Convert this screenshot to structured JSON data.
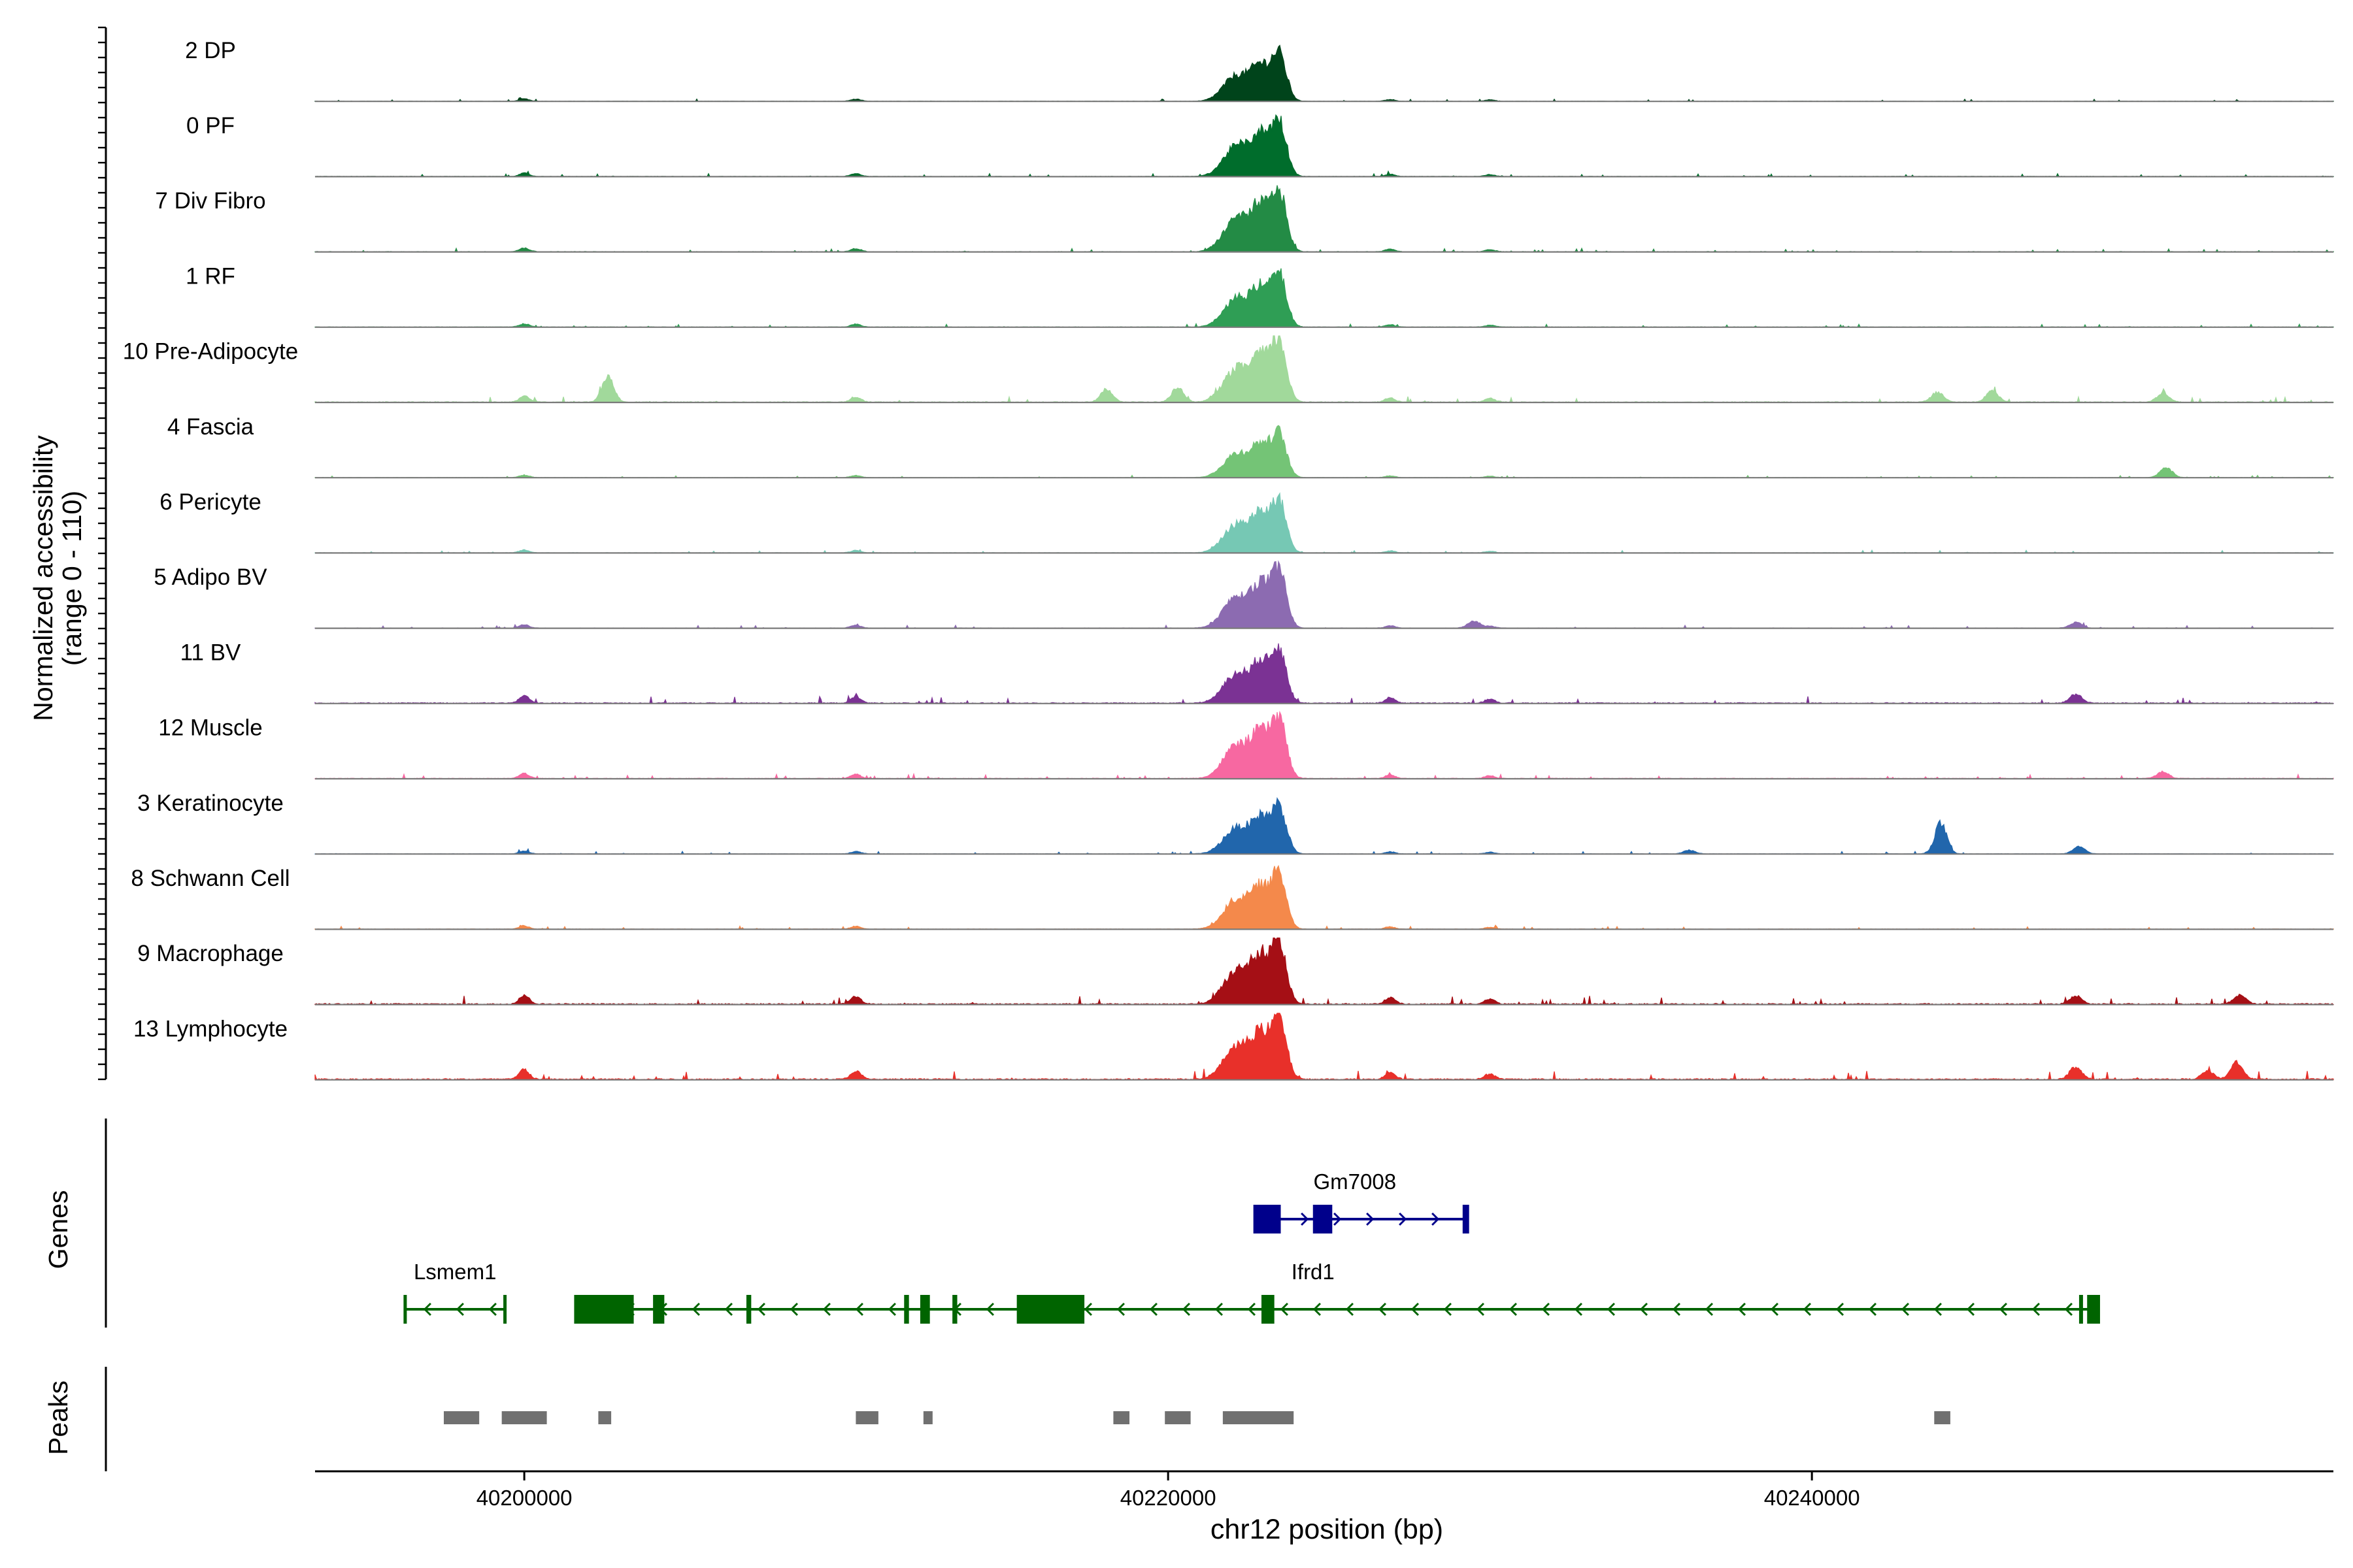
{
  "chart_data": {
    "type": "area",
    "ylabel": "Normalized accessibility",
    "ylabel_range": "(range 0 - 110)",
    "ylim": [
      0,
      110
    ],
    "xlabel": "chr12 position (bp)",
    "xlim": [
      40193500,
      40256200
    ],
    "x_ticks": [
      40200000,
      40220000,
      40240000
    ],
    "x_tick_labels": [
      "40200000",
      "40220000",
      "40240000"
    ],
    "genes_label": "Genes",
    "peaks_label": "Peaks",
    "tracks": [
      {
        "label": "2 DP",
        "color": "#00441b",
        "scale": 0.78,
        "bg": 0.6,
        "extra": []
      },
      {
        "label": "0 PF",
        "color": "#006d2c",
        "scale": 0.92,
        "bg": 0.8,
        "extra": []
      },
      {
        "label": "7 Div Fibro",
        "color": "#238b45",
        "scale": 1.0,
        "bg": 0.9,
        "extra": []
      },
      {
        "label": "1 RF",
        "color": "#2f9e55",
        "scale": 0.86,
        "bg": 0.8,
        "extra": []
      },
      {
        "label": "10 Pre-Adipocyte",
        "color": "#a1d99b",
        "scale": 1.0,
        "bg": 1.5,
        "extra": [
          [
            40202600,
            0.42
          ],
          [
            40218100,
            0.22
          ],
          [
            40220300,
            0.25
          ],
          [
            40243900,
            0.17
          ],
          [
            40245600,
            0.2
          ],
          [
            40250900,
            0.15
          ]
        ]
      },
      {
        "label": "4 Fascia",
        "color": "#74c476",
        "scale": 0.72,
        "bg": 0.6,
        "extra": [
          [
            40251000,
            0.18
          ]
        ]
      },
      {
        "label": "6 Pericyte",
        "color": "#76c8b4",
        "scale": 0.85,
        "bg": 0.7,
        "extra": []
      },
      {
        "label": "5 Adipo BV",
        "color": "#8c6bb1",
        "scale": 0.95,
        "bg": 0.8,
        "extra": [
          [
            40229500,
            0.12
          ],
          [
            40248200,
            0.1
          ]
        ]
      },
      {
        "label": "11 BV",
        "color": "#7b3294",
        "scale": 0.88,
        "bg": 1.8,
        "extra": [
          [
            40248200,
            0.16
          ]
        ]
      },
      {
        "label": "12 Muscle",
        "color": "#f768a1",
        "scale": 1.0,
        "bg": 1.2,
        "extra": [
          [
            40250900,
            0.12
          ]
        ]
      },
      {
        "label": "3 Keratinocyte",
        "color": "#2166ac",
        "scale": 0.78,
        "bg": 0.7,
        "extra": [
          [
            40244000,
            0.52
          ],
          [
            40248300,
            0.12
          ],
          [
            40236200,
            0.06
          ]
        ]
      },
      {
        "label": "8 Schwann Cell",
        "color": "#f4894b",
        "scale": 0.9,
        "bg": 0.8,
        "extra": []
      },
      {
        "label": "9 Macrophage",
        "color": "#a50f15",
        "scale": 1.0,
        "bg": 2.2,
        "extra": [
          [
            40253300,
            0.15
          ],
          [
            40248200,
            0.14
          ]
        ]
      },
      {
        "label": "13 Lymphocyte",
        "color": "#e8302a",
        "scale": 1.0,
        "bg": 2.4,
        "extra": [
          [
            40253200,
            0.3
          ],
          [
            40248200,
            0.22
          ],
          [
            40252300,
            0.14
          ]
        ]
      }
    ],
    "genes": [
      {
        "name": "Gm7008",
        "strand": "+",
        "color": "#00008b",
        "start": 40222700,
        "end": 40229300,
        "row": 0,
        "exons": [
          [
            40222700,
            40223500
          ],
          [
            40224500,
            40225100
          ],
          [
            40229150,
            40229300
          ]
        ]
      },
      {
        "name": "Lsmem1",
        "strand": "-",
        "color": "#006400",
        "start": 40196300,
        "end": 40199400,
        "row": 1,
        "exons": []
      },
      {
        "name": "Ifrd1",
        "strand": "-",
        "color": "#006400",
        "start": 40201600,
        "end": 40248900,
        "row": 1,
        "exons": [
          [
            40201600,
            40203400
          ],
          [
            40204000,
            40204350
          ],
          [
            40206900,
            40207050
          ],
          [
            40211800,
            40211950
          ],
          [
            40212300,
            40212600
          ],
          [
            40213300,
            40213450
          ],
          [
            40215300,
            40217400
          ],
          [
            40222900,
            40223300
          ],
          [
            40248300,
            40248400
          ],
          [
            40248550,
            40248900
          ]
        ]
      }
    ],
    "peaks": [
      [
        40197500,
        40198600
      ],
      [
        40199300,
        40200700
      ],
      [
        40202300,
        40202700
      ],
      [
        40210300,
        40211000
      ],
      [
        40212400,
        40212600
      ],
      [
        40218300,
        40218800
      ],
      [
        40219900,
        40220700
      ],
      [
        40221700,
        40223900
      ],
      [
        40243800,
        40244300
      ]
    ]
  }
}
